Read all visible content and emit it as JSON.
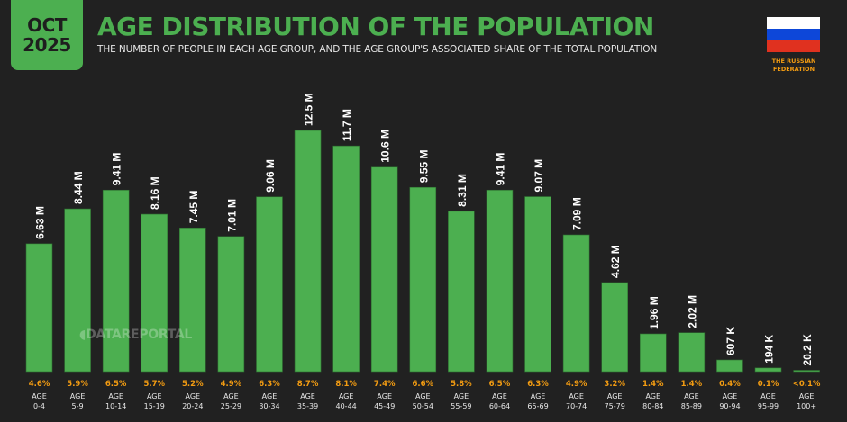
{
  "badge": {
    "month": "OCT",
    "year": "2025"
  },
  "header": {
    "title": "AGE DISTRIBUTION OF THE POPULATION",
    "subtitle": "THE NUMBER OF PEOPLE IN EACH AGE GROUP, AND THE AGE GROUP'S ASSOCIATED SHARE OF THE TOTAL POPULATION"
  },
  "country": {
    "line1": "THE RUSSIAN",
    "line2": "FEDERATION",
    "flag_colors": [
      "#ffffff",
      "#0d47d9",
      "#e0311f"
    ]
  },
  "watermark": "DATAREPORTAL",
  "colors": {
    "bar": "#4caf50",
    "share": "#f39c12",
    "label": "#e6e6e6",
    "background": "#212121"
  },
  "chart_data": {
    "type": "bar",
    "title": "AGE DISTRIBUTION OF THE POPULATION",
    "xlabel": "",
    "ylabel": "",
    "ylim": [
      0,
      12.5
    ],
    "unit": "millions",
    "categories": [
      "0-4",
      "5-9",
      "10-14",
      "15-19",
      "20-24",
      "25-29",
      "30-34",
      "35-39",
      "40-44",
      "45-49",
      "50-54",
      "55-59",
      "60-64",
      "65-69",
      "70-74",
      "75-79",
      "80-84",
      "85-89",
      "90-94",
      "95-99",
      "100+"
    ],
    "category_prefix": "AGE",
    "values": [
      6.63,
      8.44,
      9.41,
      8.16,
      7.45,
      7.01,
      9.06,
      12.5,
      11.7,
      10.6,
      9.55,
      8.31,
      9.41,
      9.07,
      7.09,
      4.62,
      1.96,
      2.02,
      0.607,
      0.194,
      0.0202
    ],
    "value_labels": [
      "6.63 M",
      "8.44 M",
      "9.41 M",
      "8.16 M",
      "7.45 M",
      "7.01 M",
      "9.06 M",
      "12.5 M",
      "11.7 M",
      "10.6 M",
      "9.55 M",
      "8.31 M",
      "9.41 M",
      "9.07 M",
      "7.09 M",
      "4.62 M",
      "1.96 M",
      "2.02 M",
      "607 K",
      "194 K",
      "20.2 K"
    ],
    "shares": [
      "4.6%",
      "5.9%",
      "6.5%",
      "5.7%",
      "5.2%",
      "4.9%",
      "6.3%",
      "8.7%",
      "8.1%",
      "7.4%",
      "6.6%",
      "5.8%",
      "6.5%",
      "6.3%",
      "4.9%",
      "3.2%",
      "1.4%",
      "1.4%",
      "0.4%",
      "0.1%",
      "<0.1%"
    ],
    "grid": false,
    "legend": "none"
  }
}
